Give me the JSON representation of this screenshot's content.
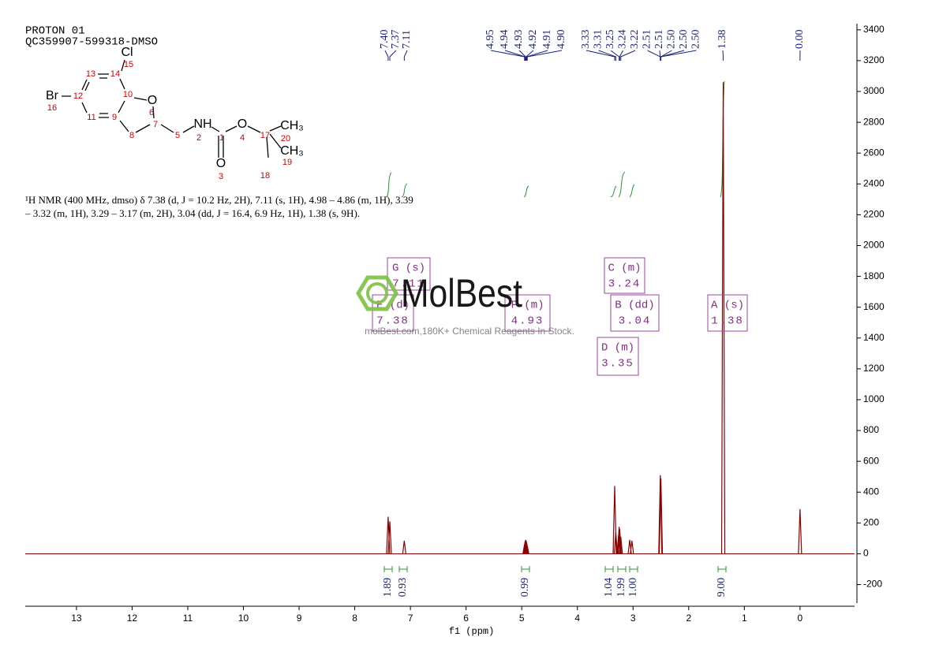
{
  "header": {
    "lines": [
      "PROTON 01",
      "QC359907-599318-DMSO"
    ]
  },
  "structure": {
    "atoms": [
      "Cl",
      "15",
      "13",
      "14",
      "Br",
      "12",
      "16",
      "10",
      "O",
      "11",
      "9",
      "6",
      "7",
      "8",
      "5",
      "NH",
      "2",
      "1",
      "O",
      "4",
      "17",
      "CH₃",
      "20",
      "CH₃",
      "19",
      "18",
      "O",
      "3"
    ]
  },
  "description": {
    "lines": [
      "¹H NMR (400 MHz, dmso) δ 7.38 (d, J = 10.2 Hz, 2H), 7.11 (s, 1H), 4.98 – 4.86 (m, 1H), 3.39",
      "– 3.32 (m, 1H), 3.29 – 3.17 (m, 2H), 3.04 (dd, J = 16.4, 6.9 Hz, 1H), 1.38 (s, 9H)."
    ]
  },
  "watermark": {
    "brand": "MolBest",
    "tagline": "molBest.com,180K+ Chemical Reagents In Stock."
  },
  "chart_data": {
    "type": "nmr",
    "x_label": "f1 (ppm)",
    "xlim": [
      13.92,
      -0.98
    ],
    "xticks": [
      13,
      12,
      11,
      10,
      9,
      8,
      7,
      6,
      5,
      4,
      3,
      2,
      1,
      0
    ],
    "ylim": [
      -320,
      3440
    ],
    "yticks": [
      3400,
      3200,
      3000,
      2800,
      2600,
      2400,
      2200,
      2000,
      1800,
      1600,
      1400,
      1200,
      1000,
      800,
      600,
      400,
      200,
      0,
      -200
    ],
    "color": "#8b0000",
    "peaks": {
      "x": [
        7.4,
        7.37,
        7.11,
        4.95,
        4.94,
        4.93,
        4.92,
        4.91,
        4.9,
        3.33,
        3.31,
        3.26,
        3.25,
        3.24,
        3.22,
        3.06,
        3.02,
        2.51,
        2.5,
        1.38,
        0.0
      ],
      "values": [
        240,
        210,
        85,
        60,
        80,
        90,
        85,
        70,
        50,
        440,
        140,
        120,
        175,
        160,
        110,
        90,
        85,
        510,
        490,
        3060,
        290
      ]
    },
    "peak_label_groups": [
      [
        "7.40",
        "7.37",
        "7.11"
      ],
      [
        "4.95",
        "4.94",
        "4.93",
        "4.92",
        "4.91",
        "4.90"
      ],
      [
        "3.33",
        "3.31",
        "3.25",
        "3.24",
        "3.22",
        "2.51",
        "2.51",
        "2.50",
        "2.50",
        "2.50"
      ],
      [
        "1.38"
      ],
      [
        "0.00"
      ]
    ],
    "multiplets": [
      {
        "label": "A (s)",
        "shift": "1.38"
      },
      {
        "label": "B (dd)",
        "shift": "3.04"
      },
      {
        "label": "C (m)",
        "shift": "3.24"
      },
      {
        "label": "D (m)",
        "shift": "3.35"
      },
      {
        "label": "E (d)",
        "shift": "7.38"
      },
      {
        "label": "F (m)",
        "shift": "4.93"
      },
      {
        "label": "G (s)",
        "shift": "7.11"
      }
    ],
    "integrals": [
      "1.89",
      "0.93",
      "0.99",
      "1.04",
      "1.99",
      "1.00",
      "9.00"
    ]
  }
}
